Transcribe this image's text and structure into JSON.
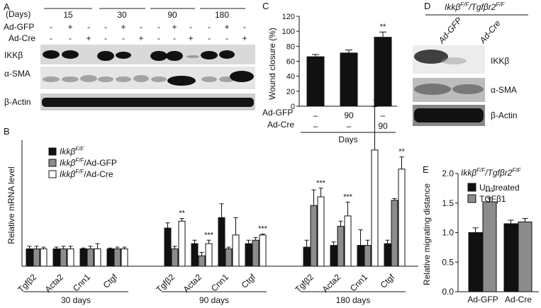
{
  "panel_letters": {
    "a": "A",
    "b": "B",
    "c": "C",
    "d": "D",
    "e": "E"
  },
  "blot_a": {
    "days_label": "(Days)",
    "days": [
      "15",
      "30",
      "90",
      "180"
    ],
    "row_gfp": "Ad-GFP",
    "row_cre": "Ad-Cre",
    "gfp_signs": [
      "-",
      "+",
      "-",
      "-",
      "+",
      "-",
      "-",
      "+",
      "-",
      "-",
      "+",
      "-"
    ],
    "cre_signs": [
      "-",
      "-",
      "+",
      "-",
      "-",
      "+",
      "-",
      "-",
      "+",
      "-",
      "-",
      "+"
    ],
    "bands": [
      "IKKβ",
      "α-SMA",
      "β-Actin"
    ]
  },
  "blot_d": {
    "genotype_base": "Ikkβ",
    "genotype_sup1": "F/F",
    "genotype_sep": "/Tgfβr2",
    "genotype_sup2": "F/F",
    "lanes": [
      "Ad-GFP",
      "Ad-Cre"
    ],
    "bands": [
      "IKKβ",
      "α-SMA",
      "β-Actin"
    ]
  },
  "chart_data": [
    {
      "panel": "B",
      "type": "bar",
      "ylabel": "Relative mRNA level",
      "groups": [
        "30 days",
        "90 days",
        "180 days"
      ],
      "categories": [
        "Tgfβ2",
        "Acta2",
        "Cnn1",
        "Ctgf"
      ],
      "legend": [
        "IkkβF/F",
        "IkkβF/F/Ad-GFP",
        "IkkβF/F/Ad-Cre"
      ],
      "legend_parts": [
        {
          "base": "Ikkβ",
          "sup": "F/F",
          "suffix": ""
        },
        {
          "base": "Ikkβ",
          "sup": "F/F",
          "suffix": "/Ad-GFP"
        },
        {
          "base": "Ikkβ",
          "sup": "F/F",
          "suffix": "/Ad-Cre"
        }
      ],
      "colors": [
        "#111111",
        "#8c8c8c",
        "#ffffff"
      ],
      "series_values": [
        [
          [
            1.0,
            1.0,
            1.0,
            1.0
          ],
          [
            1.0,
            1.0,
            1.0,
            1.0
          ],
          [
            1.0,
            1.0,
            1.0,
            1.0
          ]
        ],
        [
          [
            2.2,
            1.3,
            2.8,
            1.3
          ],
          [
            1.0,
            0.6,
            1.0,
            1.5
          ],
          [
            2.6,
            1.3,
            1.8,
            1.8
          ]
        ],
        [
          [
            1.1,
            1.2,
            1.2,
            1.3
          ],
          [
            3.5,
            2.3,
            1.2,
            3.8
          ],
          [
            4.0,
            2.9,
            6.7,
            5.6
          ]
        ]
      ],
      "series_errors": [
        [
          [
            0.15,
            0.1,
            0.05,
            0.05
          ],
          [
            0.15,
            0.15,
            0.15,
            0.1
          ],
          [
            0.1,
            0.15,
            0.3,
            0.1
          ]
        ],
        [
          [
            0.3,
            0.2,
            0.8,
            0.2
          ],
          [
            0.15,
            0.2,
            0.1,
            0.15
          ],
          [
            0.15,
            0.2,
            1.0,
            0.05
          ]
        ],
        [
          [
            0.4,
            0.2,
            0.9,
            0.2
          ],
          [
            0.9,
            0.3,
            0.3,
            0.1
          ],
          [
            0.5,
            0.8,
            2.5,
            0.7
          ]
        ]
      ],
      "significance": [
        [
          "",
          "",
          "",
          ""
        ],
        [
          "**",
          "***",
          "",
          "***"
        ],
        [
          "***",
          "***",
          "*",
          "**"
        ]
      ]
    },
    {
      "panel": "C",
      "type": "bar",
      "ylabel": "Wound closure (%)",
      "xlabel": "Days",
      "y_ticks": [
        "0",
        "20",
        "40",
        "60",
        "80",
        "100",
        "120"
      ],
      "ylim": [
        0,
        120
      ],
      "row_labels": [
        "Ad-GFP",
        "Ad-Cre"
      ],
      "gfp_row": [
        "–",
        "90",
        "–"
      ],
      "cre_row": [
        "–",
        "–",
        "90"
      ],
      "values": [
        66,
        71,
        92
      ],
      "errors": [
        3,
        4,
        7
      ],
      "significance": [
        "",
        "",
        "**"
      ],
      "color": "#111111"
    },
    {
      "panel": "E",
      "type": "bar",
      "ylabel": "Relative migrating distance",
      "genotype_base": "Ikkβ",
      "genotype_sup1": "F/F",
      "genotype_sep": "/Tgfβr2",
      "genotype_sup2": "F/F",
      "categories": [
        "Ad-GFP",
        "Ad-Cre"
      ],
      "y_ticks": [
        "0.0",
        "0.5",
        "1.0",
        "1.5",
        "2.0"
      ],
      "ylim": [
        0,
        2.0
      ],
      "legend": [
        "Un-treated",
        "TGFβ1"
      ],
      "colors": [
        "#111111",
        "#8c8c8c"
      ],
      "series_values": [
        [
          1.0,
          1.15
        ],
        [
          1.52,
          1.18
        ]
      ],
      "series_errors": [
        [
          0.08,
          0.06
        ],
        [
          0.07,
          0.06
        ]
      ],
      "significance": [
        [
          "",
          ""
        ],
        [
          "***",
          ""
        ]
      ]
    }
  ]
}
